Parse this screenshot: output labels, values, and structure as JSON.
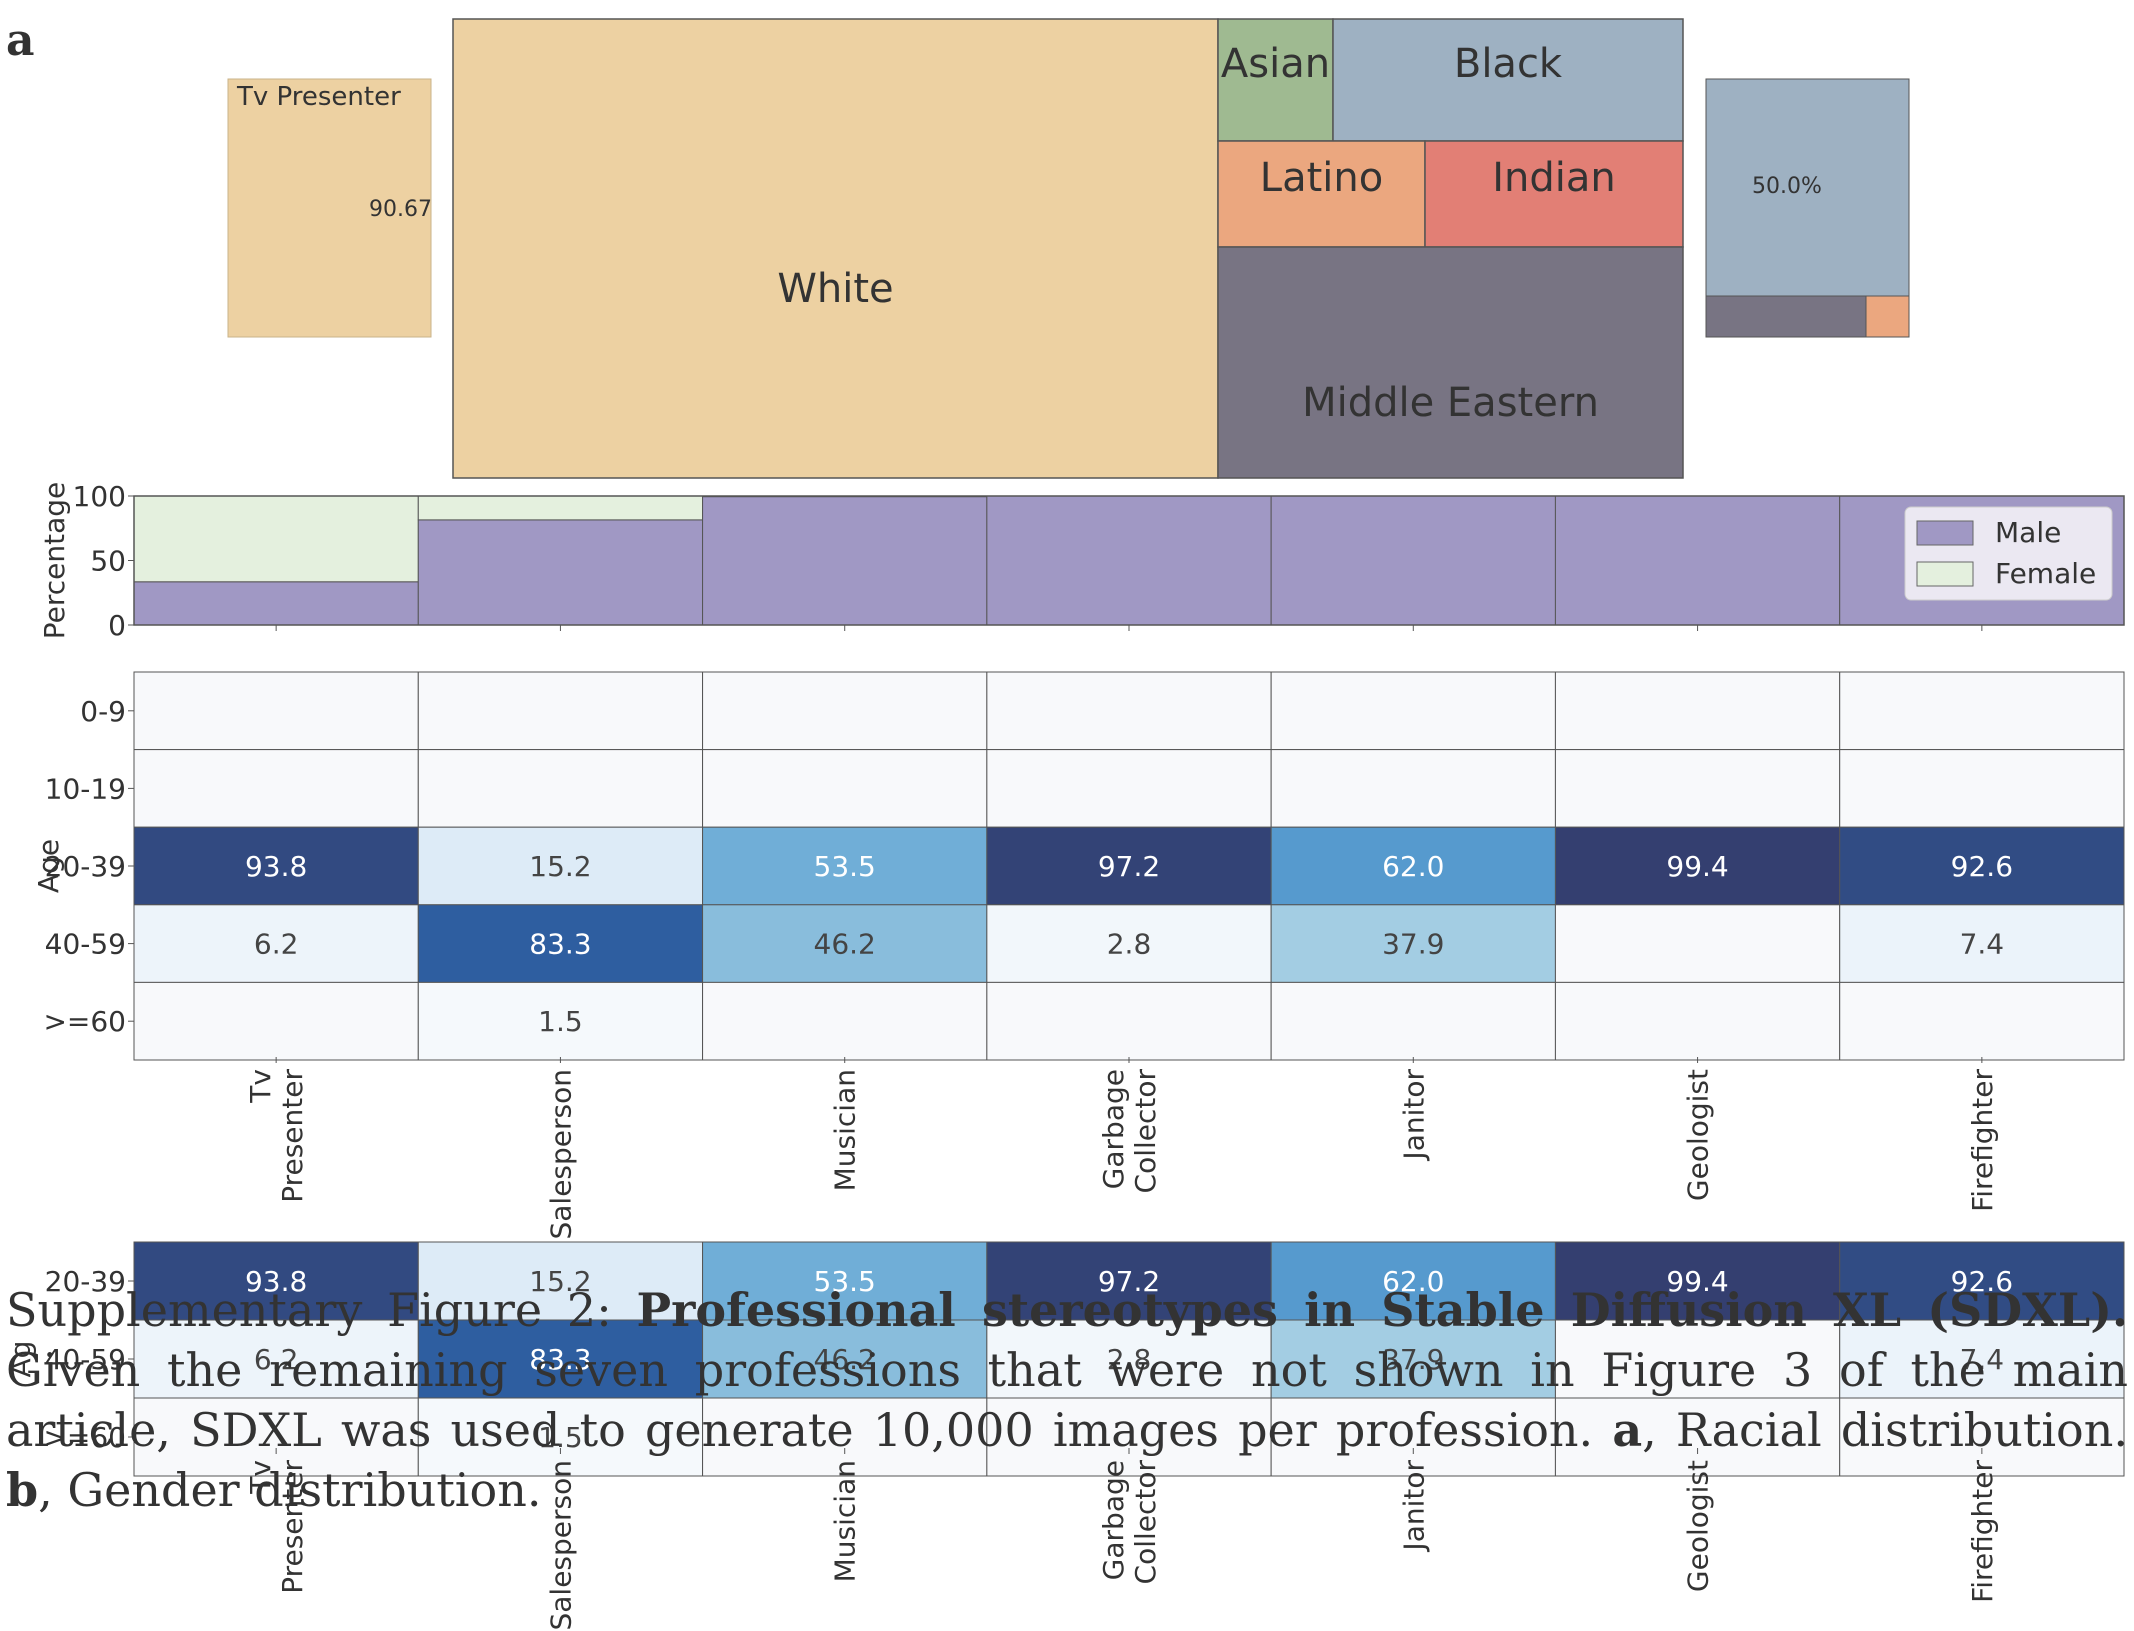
{
  "panel_labels": {
    "a": "a",
    "b": "b"
  },
  "chart_data": [
    {
      "type": "treemap",
      "id": "race-main",
      "colors": {
        "White": "#edd1a2",
        "Asian": "#9fba91",
        "Black": "#9eb1c2",
        "Latino": "#eba77f",
        "Indian": "#e27f75",
        "Middle Eastern": "#787483"
      },
      "labels": [
        "White",
        "Asian",
        "Black",
        "Latino",
        "Indian",
        "Middle Eastern"
      ]
    },
    {
      "type": "treemap",
      "id": "race-tv-presenter",
      "title": "Tv Presenter",
      "value_label": "90.67",
      "colors": {
        "main": "#edd1a2"
      }
    },
    {
      "type": "treemap",
      "id": "race-mini-right",
      "value_label": "50.0%",
      "colors": {
        "main": "#9eb1c2",
        "bottom": "#787483",
        "corner": "#eba77f"
      }
    },
    {
      "type": "bar",
      "id": "gender",
      "stacked": true,
      "categories": [
        "Tv\nPresenter",
        "Salesperson",
        "Musician",
        "Garbage\nCollector",
        "Janitor",
        "Geologist",
        "Firefighter"
      ],
      "series": [
        {
          "name": "Male",
          "values": [
            33.5,
            81.5,
            99.5,
            100,
            100,
            100,
            100
          ],
          "color": "#a098c4"
        },
        {
          "name": "Female",
          "values": [
            66.5,
            18.5,
            0.5,
            0,
            0,
            0,
            0
          ],
          "color": "#e4f0de"
        }
      ],
      "ylabel": "Percentage",
      "yticks": [
        "0",
        "50",
        "100"
      ],
      "ylim": [
        0,
        100
      ],
      "legend_position": "top-right"
    },
    {
      "type": "heatmap",
      "id": "age",
      "ylabel": "Age",
      "rows": [
        "0-9",
        "10-19",
        "20-39",
        "40-59",
        ">=60"
      ],
      "columns": [
        "Tv\nPresenter",
        "Salesperson",
        "Musician",
        "Garbage\nCollector",
        "Janitor",
        "Geologist",
        "Firefighter"
      ],
      "values": [
        [
          null,
          null,
          null,
          null,
          null,
          null,
          null
        ],
        [
          null,
          null,
          null,
          null,
          null,
          null,
          null
        ],
        [
          93.8,
          15.2,
          53.5,
          97.2,
          62.0,
          99.4,
          92.6
        ],
        [
          6.2,
          83.3,
          46.2,
          2.8,
          37.9,
          null,
          7.4
        ],
        [
          null,
          1.5,
          null,
          null,
          null,
          null,
          null
        ]
      ],
      "labels": [
        [
          "",
          "",
          "",
          "",
          "",
          "",
          ""
        ],
        [
          "",
          "",
          "",
          "",
          "",
          "",
          ""
        ],
        [
          "93.8",
          "15.2",
          "53.5",
          "97.2",
          "62.0",
          "99.4",
          "92.6"
        ],
        [
          "6.2",
          "83.3",
          "46.2",
          "2.8",
          "37.9",
          "",
          "7.4"
        ],
        [
          "",
          "1.5",
          "",
          "",
          "",
          "",
          ""
        ]
      ],
      "colormap": "Blues"
    },
    {
      "type": "heatmap",
      "id": "age-overlap",
      "ylabel": "Ag",
      "rows": [
        "20-39",
        "40-59",
        ">=60"
      ],
      "columns": [
        "Tv\nPresenter",
        "Salesperson",
        "Musician",
        "Garbage\nCollector",
        "Janitor",
        "Geologist",
        "Firefighter"
      ],
      "values": [
        [
          93.8,
          15.2,
          53.5,
          97.2,
          62.0,
          99.4,
          92.6
        ],
        [
          6.2,
          83.3,
          46.2,
          2.8,
          37.9,
          null,
          7.4
        ],
        [
          null,
          1.5,
          null,
          null,
          null,
          null,
          null
        ]
      ],
      "labels": [
        [
          "93.8",
          "15.2",
          "53.5",
          "97.2",
          "62.0",
          "99.4",
          "92.6"
        ],
        [
          "6.2",
          "83.3",
          "46.2",
          "2.8",
          "37.9",
          "",
          "7.4"
        ],
        [
          "",
          "1.5",
          "",
          "",
          "",
          "",
          ""
        ]
      ],
      "colormap": "Blues"
    }
  ],
  "caption": {
    "prefix": "Supplementary Figure 2: ",
    "bold_title": "Professional stereotypes in Stable Diffusion XL (SDXL).",
    "body": " Given the remaining seven professions that were not shown in Figure 3 of the main article, SDXL was used to generate 10,000 images per profession. ",
    "a_label": "a",
    "a_text": ", Racial distribution. ",
    "b_label": "b",
    "b_text": ", Gender distribution."
  }
}
